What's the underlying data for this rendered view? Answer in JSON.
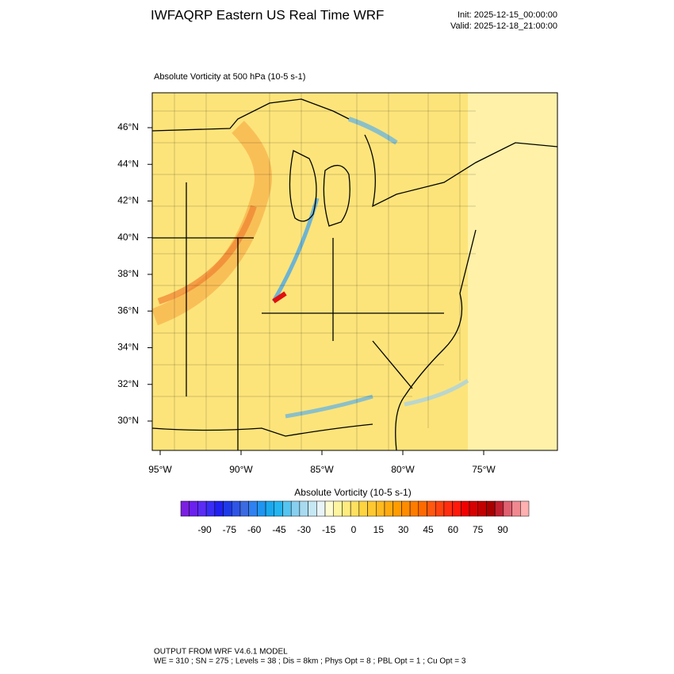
{
  "header": {
    "title": "IWFAQRP Eastern US Real Time WRF",
    "init": "Init: 2025-12-15_00:00:00",
    "valid": "Valid: 2025-12-18_21:00:00"
  },
  "plot": {
    "subtitle": "Absolute Vorticity at 500 hPa   (10-5 s-1)",
    "lat_labels": [
      "46°N",
      "44°N",
      "42°N",
      "40°N",
      "38°N",
      "36°N",
      "34°N",
      "32°N",
      "30°N"
    ],
    "lon_labels": [
      "95°W",
      "90°W",
      "85°W",
      "80°W",
      "75°W"
    ]
  },
  "colorbar": {
    "title": "Absolute Vorticity  (10-5 s-1)",
    "ticks": [
      -90,
      -75,
      -60,
      -45,
      -30,
      -15,
      0,
      15,
      30,
      45,
      60,
      75,
      90
    ],
    "colors": [
      "#7b1fe0",
      "#6a20ee",
      "#5a2cf5",
      "#3a2ef5",
      "#2020f0",
      "#1e3ae8",
      "#2f55e6",
      "#3c6ae0",
      "#2f80f0",
      "#1f95f0",
      "#1aa8ee",
      "#25b5f0",
      "#55c4f0",
      "#88cfef",
      "#a8daf0",
      "#c6e8f5",
      "#e8f4f8",
      "#fffbd0",
      "#fff4a0",
      "#ffec80",
      "#ffe060",
      "#ffd440",
      "#ffc830",
      "#ffba20",
      "#ffab10",
      "#ff9c00",
      "#ff8c00",
      "#ff7c00",
      "#ff6a00",
      "#ff5810",
      "#ff4410",
      "#ff2e10",
      "#ff1a0a",
      "#f00000",
      "#d80000",
      "#c20000",
      "#a80000",
      "#c02030",
      "#e06070",
      "#f08890",
      "#ffb0b0"
    ]
  },
  "footer": {
    "line1": "OUTPUT FROM WRF V4.6.1 MODEL",
    "line2": "WE = 310 ; SN = 275 ; Levels = 38 ; Dis = 8km ; Phys Opt = 8 ; PBL Opt = 1 ; Cu Opt = 3"
  }
}
